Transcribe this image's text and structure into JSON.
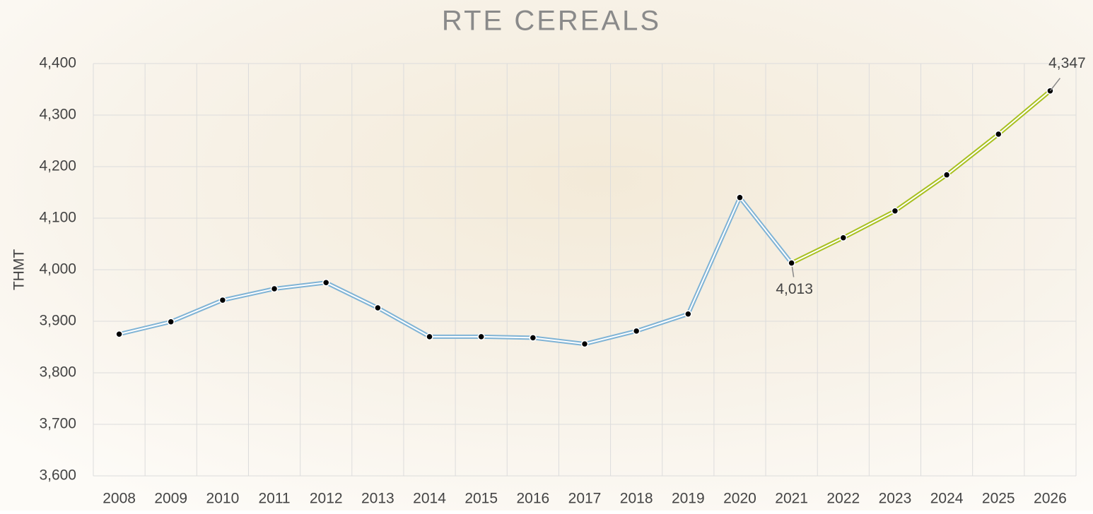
{
  "chart_data": {
    "type": "line",
    "title": "RTE CEREALS",
    "y_label": "THMT",
    "categories": [
      "2008",
      "2009",
      "2010",
      "2011",
      "2012",
      "2013",
      "2014",
      "2015",
      "2016",
      "2017",
      "2018",
      "2019",
      "2020",
      "2021",
      "2022",
      "2023",
      "2024",
      "2025",
      "2026"
    ],
    "series": [
      {
        "color": "#7fb3d5",
        "values": [
          3875,
          3899,
          3941,
          3963,
          3975,
          3926,
          3870,
          3870,
          3868,
          3856,
          3881,
          3914,
          4140,
          4013,
          null,
          null,
          null,
          null,
          null
        ],
        "value_labels": [
          null,
          null,
          null,
          null,
          null,
          null,
          null,
          null,
          null,
          null,
          null,
          null,
          null,
          "4,013",
          null,
          null,
          null,
          null,
          null
        ]
      },
      {
        "color": "#a8c020",
        "values": [
          null,
          null,
          null,
          null,
          null,
          null,
          null,
          null,
          null,
          null,
          null,
          null,
          null,
          4013,
          4062,
          4114,
          4184,
          4263,
          4347
        ],
        "value_labels": [
          null,
          null,
          null,
          null,
          null,
          null,
          null,
          null,
          null,
          null,
          null,
          null,
          null,
          null,
          null,
          null,
          null,
          null,
          "4,347"
        ]
      }
    ],
    "ylim": [
      3600,
      4400
    ],
    "yticks": [
      {
        "value": 3600,
        "label": "3,600"
      },
      {
        "value": 3700,
        "label": "3,700"
      },
      {
        "value": 3800,
        "label": "3,800"
      },
      {
        "value": 3900,
        "label": "3,900"
      },
      {
        "value": 4000,
        "label": "4,000"
      },
      {
        "value": 4100,
        "label": "4,100"
      },
      {
        "value": 4200,
        "label": "4,200"
      },
      {
        "value": 4300,
        "label": "4,300"
      },
      {
        "value": 4400,
        "label": "4,400"
      }
    ],
    "grid": true
  }
}
